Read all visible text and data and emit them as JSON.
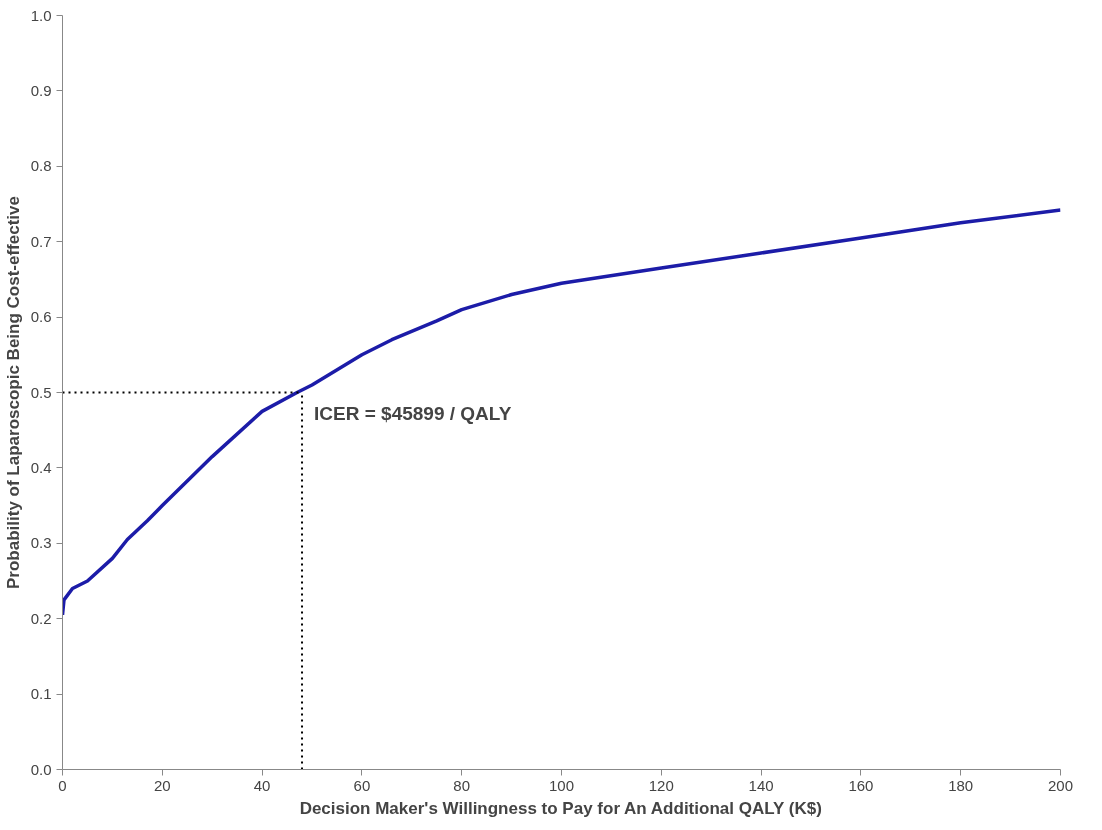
{
  "chart_data": {
    "type": "line",
    "xlabel": "Decision Maker's Willingness to Pay for An Additional QALY (K$)",
    "ylabel": "Probability of Laparoscopic Being Cost-effective",
    "x": [
      0,
      0.3,
      2,
      5,
      10,
      13,
      17,
      20,
      30,
      40,
      47,
      50,
      60,
      66,
      75,
      80,
      90,
      100,
      120,
      140,
      160,
      180,
      200
    ],
    "series": [
      {
        "color": "#1c1ca8",
        "values": [
          0.205,
          0.225,
          0.24,
          0.25,
          0.28,
          0.305,
          0.33,
          0.35,
          0.415,
          0.475,
          0.5,
          0.51,
          0.55,
          0.57,
          0.595,
          0.61,
          0.63,
          0.645,
          0.665,
          0.685,
          0.705,
          0.725,
          0.742
        ]
      }
    ],
    "xlim": [
      0,
      200
    ],
    "xticks": [
      0,
      20,
      40,
      60,
      80,
      100,
      120,
      140,
      160,
      180,
      200
    ],
    "ylim": [
      0,
      1
    ],
    "yticks": [
      {
        "value": 0,
        "label": "0.0"
      },
      0.1,
      0.2,
      0.3,
      0.4,
      0.5,
      0.6,
      0.7,
      0.8,
      0.9,
      {
        "value": 1,
        "label": "1.0"
      }
    ],
    "grid": false,
    "marker": "none",
    "line_style": "solid",
    "ref_lines": [
      {
        "axis": "y",
        "value": 0.5,
        "color": "#000000",
        "line_style": "dotted"
      },
      {
        "axis": "x",
        "value": 48,
        "color": "#000000",
        "line_style": "dotted"
      }
    ],
    "annotations": [
      {
        "text": "ICER = $45899 / QALY",
        "x": 48,
        "y": 0.5
      }
    ]
  }
}
